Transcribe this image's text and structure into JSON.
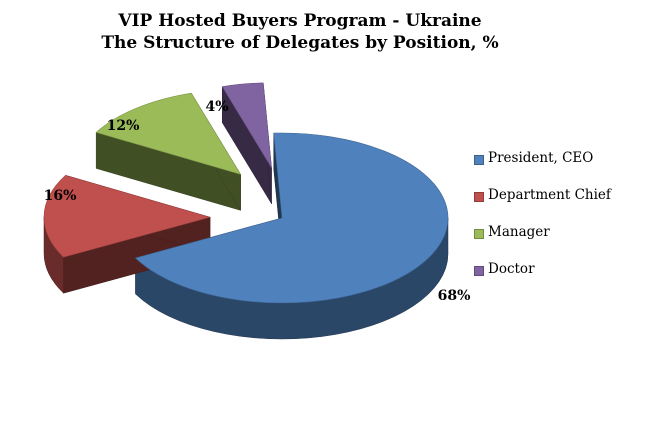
{
  "chart_data": {
    "type": "pie",
    "title": "VIP Hosted Buyers Program - Ukraine",
    "subtitle": "The Structure of Delegates by Position, %",
    "categories": [
      "President, CEO",
      "Department Chief",
      "Manager",
      "Doctor"
    ],
    "values": [
      68,
      16,
      12,
      4
    ],
    "value_labels": [
      "68%",
      "16%",
      "12%",
      "4%"
    ],
    "colors": [
      "#4F81BD",
      "#C0504D",
      "#9BBB59",
      "#8064A2"
    ],
    "style": "3d-exploded",
    "legend": "right"
  }
}
